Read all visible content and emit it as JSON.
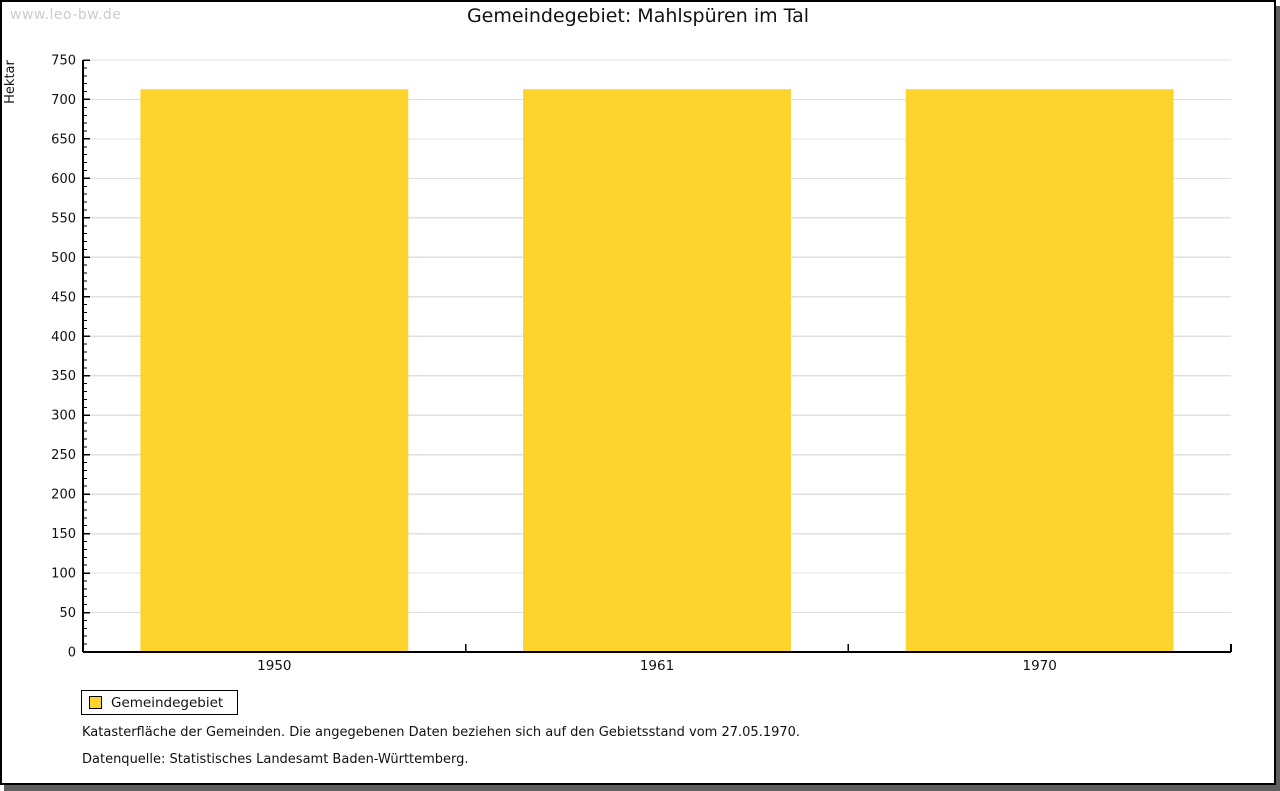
{
  "watermark": "www.leo-bw.de",
  "title": "Gemeindegebiet: Mahlspüren im Tal",
  "legend": {
    "items": [
      {
        "label": "Gemeindegebiet",
        "color": "#fcd42d"
      }
    ]
  },
  "footnotes": [
    "Katasterfläche der Gemeinden. Die angegebenen Daten beziehen sich auf den Gebietsstand vom 27.05.1970.",
    "Datenquelle: Statistisches Landesamt Baden-Württemberg."
  ],
  "colors": {
    "bar_fill": "#fcd42d",
    "gridline": "#e0e0e0",
    "axis": "#000000",
    "watermark": "#cccccc",
    "shadow": "#5f5f5f",
    "background": "#ffffff"
  },
  "chart_data": {
    "type": "bar",
    "title": "Gemeindegebiet: Mahlspüren im Tal",
    "categories": [
      "1950",
      "1961",
      "1970"
    ],
    "series": [
      {
        "name": "Gemeindegebiet",
        "values": [
          713,
          713,
          713
        ],
        "color": "#fcd42d"
      }
    ],
    "xlabel": "",
    "ylabel": "Hektar",
    "ylim": [
      0,
      750
    ],
    "y_major_step": 50,
    "y_minor_step": 10,
    "grid": "horizontal-majors",
    "legend_position": "bottom-left"
  }
}
